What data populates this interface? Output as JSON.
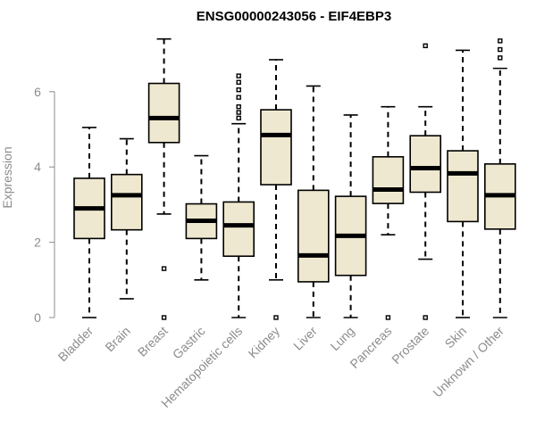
{
  "chart_data": {
    "type": "boxplot",
    "title": "ENSG00000243056 - EIF4EBP3",
    "ylabel": "Expression",
    "xlabel": "",
    "ylim": [
      0,
      7.5
    ],
    "yticks": [
      0,
      2,
      4,
      6
    ],
    "grid": false,
    "box_color": "#efe8d0",
    "categories": [
      "Bladder",
      "Brain",
      "Breast",
      "Gastric",
      "Hematopoietic cells",
      "Kidney",
      "Liver",
      "Lung",
      "Pancreas",
      "Prostate",
      "Skin",
      "Unknown / Other"
    ],
    "boxes": [
      {
        "whisker_low": 0.0,
        "q1": 2.1,
        "median": 2.9,
        "q3": 3.7,
        "whisker_high": 5.05,
        "outliers": []
      },
      {
        "whisker_low": 0.5,
        "q1": 2.33,
        "median": 3.25,
        "q3": 3.8,
        "whisker_high": 4.75,
        "outliers": []
      },
      {
        "whisker_low": 2.75,
        "q1": 4.65,
        "median": 5.3,
        "q3": 6.22,
        "whisker_high": 7.4,
        "outliers": [
          1.3,
          0.0
        ]
      },
      {
        "whisker_low": 1.0,
        "q1": 2.1,
        "median": 2.57,
        "q3": 3.02,
        "whisker_high": 4.3,
        "outliers": []
      },
      {
        "whisker_low": 0.0,
        "q1": 1.63,
        "median": 2.45,
        "q3": 3.07,
        "whisker_high": 5.15,
        "outliers": [
          5.3,
          5.45,
          5.6,
          5.85,
          6.05,
          6.25,
          6.42
        ]
      },
      {
        "whisker_low": 1.0,
        "q1": 3.53,
        "median": 4.85,
        "q3": 5.52,
        "whisker_high": 6.85,
        "outliers": [
          0.0
        ]
      },
      {
        "whisker_low": 0.0,
        "q1": 0.95,
        "median": 1.65,
        "q3": 3.38,
        "whisker_high": 6.15,
        "outliers": []
      },
      {
        "whisker_low": 0.0,
        "q1": 1.12,
        "median": 2.17,
        "q3": 3.22,
        "whisker_high": 5.38,
        "outliers": []
      },
      {
        "whisker_low": 2.2,
        "q1": 3.03,
        "median": 3.4,
        "q3": 4.27,
        "whisker_high": 5.6,
        "outliers": [
          0.0
        ]
      },
      {
        "whisker_low": 1.55,
        "q1": 3.33,
        "median": 3.97,
        "q3": 4.83,
        "whisker_high": 5.6,
        "outliers": [
          7.22,
          0.0
        ]
      },
      {
        "whisker_low": 0.0,
        "q1": 2.55,
        "median": 3.83,
        "q3": 4.43,
        "whisker_high": 7.1,
        "outliers": []
      },
      {
        "whisker_low": 0.0,
        "q1": 2.35,
        "median": 3.25,
        "q3": 4.08,
        "whisker_high": 6.62,
        "outliers": [
          6.9,
          7.12,
          7.35
        ]
      }
    ]
  }
}
